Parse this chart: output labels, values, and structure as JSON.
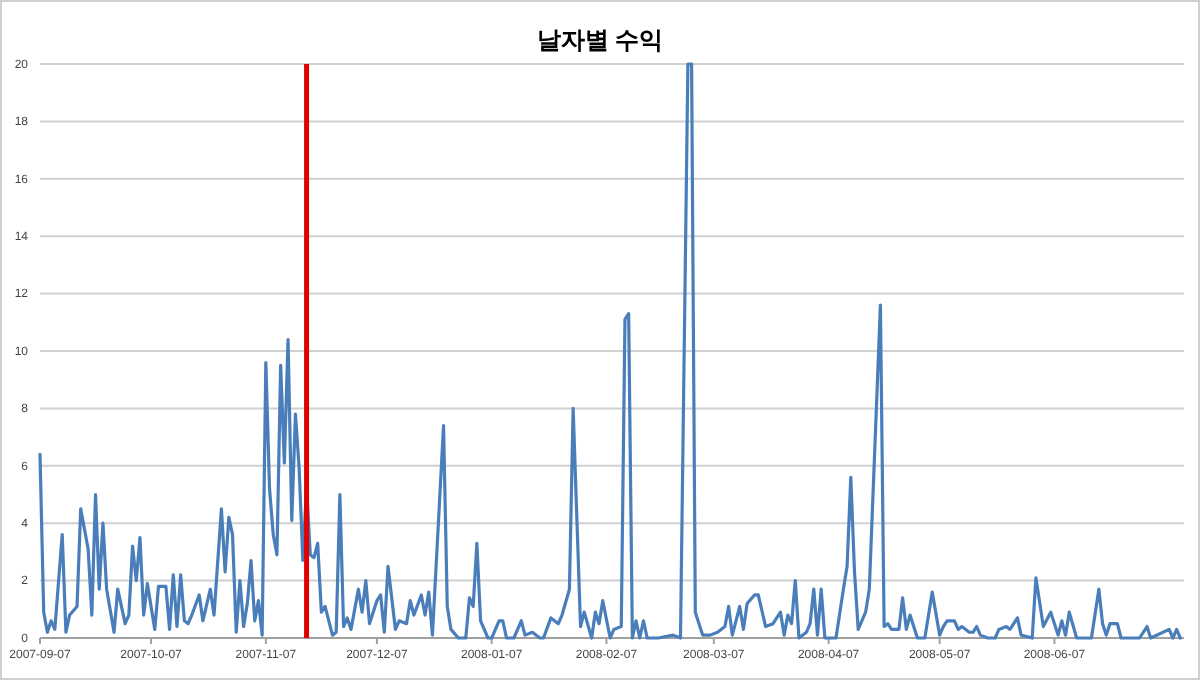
{
  "chart_data": {
    "type": "line",
    "title": "날자별 수익",
    "x": [
      "2007-09-07",
      "2007-09-08",
      "2007-09-09",
      "2007-09-10",
      "2007-09-11",
      "2007-09-13",
      "2007-09-14",
      "2007-09-15",
      "2007-09-17",
      "2007-09-18",
      "2007-09-20",
      "2007-09-21",
      "2007-09-22",
      "2007-09-23",
      "2007-09-24",
      "2007-09-25",
      "2007-09-27",
      "2007-09-28",
      "2007-09-30",
      "2007-10-01",
      "2007-10-02",
      "2007-10-03",
      "2007-10-04",
      "2007-10-05",
      "2007-10-06",
      "2007-10-08",
      "2007-10-09",
      "2007-10-11",
      "2007-10-12",
      "2007-10-13",
      "2007-10-14",
      "2007-10-15",
      "2007-10-16",
      "2007-10-17",
      "2007-10-18",
      "2007-10-20",
      "2007-10-21",
      "2007-10-23",
      "2007-10-24",
      "2007-10-26",
      "2007-10-27",
      "2007-10-28",
      "2007-10-29",
      "2007-10-30",
      "2007-10-31",
      "2007-11-01",
      "2007-11-02",
      "2007-11-03",
      "2007-11-04",
      "2007-11-05",
      "2007-11-06",
      "2007-11-07",
      "2007-11-08",
      "2007-11-09",
      "2007-11-10",
      "2007-11-11",
      "2007-11-12",
      "2007-11-13",
      "2007-11-14",
      "2007-11-15",
      "2007-11-16",
      "2007-11-17",
      "2007-11-18",
      "2007-11-19",
      "2007-11-20",
      "2007-11-21",
      "2007-11-22",
      "2007-11-23",
      "2007-11-25",
      "2007-11-26",
      "2007-11-27",
      "2007-11-28",
      "2007-11-29",
      "2007-11-30",
      "2007-12-02",
      "2007-12-03",
      "2007-12-04",
      "2007-12-05",
      "2007-12-07",
      "2007-12-08",
      "2007-12-09",
      "2007-12-10",
      "2007-12-12",
      "2007-12-13",
      "2007-12-15",
      "2007-12-16",
      "2007-12-17",
      "2007-12-19",
      "2007-12-20",
      "2007-12-21",
      "2007-12-22",
      "2007-12-25",
      "2007-12-26",
      "2007-12-27",
      "2007-12-29",
      "2007-12-31",
      "2008-01-01",
      "2008-01-02",
      "2008-01-03",
      "2008-01-04",
      "2008-01-06",
      "2008-01-07",
      "2008-01-09",
      "2008-01-10",
      "2008-01-11",
      "2008-01-13",
      "2008-01-15",
      "2008-01-16",
      "2008-01-18",
      "2008-01-20",
      "2008-01-21",
      "2008-01-23",
      "2008-01-25",
      "2008-01-26",
      "2008-01-28",
      "2008-01-29",
      "2008-01-31",
      "2008-02-01",
      "2008-02-03",
      "2008-02-04",
      "2008-02-05",
      "2008-02-06",
      "2008-02-08",
      "2008-02-09",
      "2008-02-11",
      "2008-02-12",
      "2008-02-13",
      "2008-02-14",
      "2008-02-15",
      "2008-02-16",
      "2008-02-17",
      "2008-02-18",
      "2008-02-21",
      "2008-02-25",
      "2008-02-27",
      "2008-02-29",
      "2008-03-01",
      "2008-03-02",
      "2008-03-04",
      "2008-03-06",
      "2008-03-08",
      "2008-03-10",
      "2008-03-11",
      "2008-03-12",
      "2008-03-14",
      "2008-03-15",
      "2008-03-16",
      "2008-03-18",
      "2008-03-19",
      "2008-03-21",
      "2008-03-23",
      "2008-03-25",
      "2008-03-26",
      "2008-03-27",
      "2008-03-28",
      "2008-03-29",
      "2008-03-30",
      "2008-04-01",
      "2008-04-02",
      "2008-04-03",
      "2008-04-04",
      "2008-04-05",
      "2008-04-06",
      "2008-04-09",
      "2008-04-11",
      "2008-04-12",
      "2008-04-13",
      "2008-04-14",
      "2008-04-15",
      "2008-04-17",
      "2008-04-18",
      "2008-04-21",
      "2008-04-22",
      "2008-04-23",
      "2008-04-24",
      "2008-04-26",
      "2008-04-27",
      "2008-04-28",
      "2008-04-29",
      "2008-05-01",
      "2008-05-03",
      "2008-05-05",
      "2008-05-07",
      "2008-05-08",
      "2008-05-09",
      "2008-05-11",
      "2008-05-12",
      "2008-05-13",
      "2008-05-15",
      "2008-05-16",
      "2008-05-17",
      "2008-05-18",
      "2008-05-20",
      "2008-05-22",
      "2008-05-23",
      "2008-05-25",
      "2008-05-26",
      "2008-05-27",
      "2008-05-28",
      "2008-05-29",
      "2008-06-01",
      "2008-06-02",
      "2008-06-04",
      "2008-06-06",
      "2008-06-08",
      "2008-06-09",
      "2008-06-10",
      "2008-06-11",
      "2008-06-13",
      "2008-06-17",
      "2008-06-19",
      "2008-06-20",
      "2008-06-21",
      "2008-06-22",
      "2008-06-24",
      "2008-06-25",
      "2008-06-30",
      "2008-07-02",
      "2008-07-03",
      "2008-07-08",
      "2008-07-09",
      "2008-07-10",
      "2008-07-11"
    ],
    "series": [
      {
        "color": "#4a7ebb",
        "values": [
          6.4,
          0.9,
          0.2,
          0.6,
          0.3,
          3.6,
          0.2,
          0.8,
          1.1,
          4.5,
          3.1,
          0.8,
          5,
          1.7,
          4,
          1.7,
          0.2,
          1.7,
          0.5,
          0.8,
          3.2,
          2,
          3.5,
          0.8,
          1.9,
          0.3,
          1.8,
          1.8,
          0.3,
          2.2,
          0.4,
          2.2,
          0.6,
          0.5,
          0.8,
          1.5,
          0.6,
          1.7,
          0.8,
          4.5,
          2.3,
          4.2,
          3.6,
          0.2,
          2,
          0.4,
          1.2,
          2.7,
          0.6,
          1.3,
          0.1,
          9.6,
          5.2,
          3.6,
          2.9,
          9.5,
          6.1,
          10.4,
          4.1,
          7.8,
          5.9,
          2.7,
          5.3,
          2.9,
          2.8,
          3.3,
          0.9,
          1.1,
          0.1,
          0.2,
          5,
          0.4,
          0.7,
          0.3,
          1.7,
          0.9,
          2,
          0.5,
          1.3,
          1.5,
          0.2,
          2.5,
          0.3,
          0.6,
          0.5,
          1.3,
          0.8,
          1.5,
          0.8,
          1.6,
          0.1,
          7.4,
          1.1,
          0.3,
          0,
          0,
          1.4,
          1.1,
          3.3,
          0.6,
          0,
          0,
          0.6,
          0.6,
          0,
          0,
          0.6,
          0.1,
          0.2,
          0,
          0,
          0.7,
          0.5,
          0.8,
          1.7,
          8,
          0.4,
          0.9,
          0,
          0.9,
          0.5,
          1.3,
          0,
          0.3,
          0.4,
          11.1,
          11.3,
          0,
          0.6,
          0,
          0.6,
          0,
          0,
          0.1,
          0,
          20,
          20,
          0.9,
          0.1,
          0.1,
          0.2,
          0.4,
          1.1,
          0.1,
          1.1,
          0.3,
          1.2,
          1.5,
          1.5,
          0.4,
          0.5,
          0.9,
          0.1,
          0.8,
          0.5,
          2,
          0,
          0.2,
          0.5,
          1.7,
          0.1,
          1.7,
          0,
          0,
          1.7,
          2.5,
          5.6,
          2.3,
          0.3,
          0.9,
          1.7,
          11.6,
          0.4,
          0.5,
          0.3,
          0.3,
          1.4,
          0.3,
          0.8,
          0,
          0,
          1.6,
          0.1,
          0.4,
          0.6,
          0.6,
          0.3,
          0.4,
          0.2,
          0.2,
          0.4,
          0.1,
          0,
          0,
          0.3,
          0.4,
          0.3,
          0.5,
          0.7,
          0.1,
          0,
          2.1,
          0.4,
          0.9,
          0.1,
          0.6,
          0.1,
          0.9,
          0,
          0,
          1.7,
          0.5,
          0.1,
          0.5,
          0.5,
          0,
          0,
          0.4,
          0,
          0.3,
          0,
          0.3,
          0
        ]
      }
    ],
    "xlim": [
      "2007-09-07",
      "2008-07-12"
    ],
    "xticks": [
      "2007-09-07",
      "2007-10-07",
      "2007-11-07",
      "2007-12-07",
      "2008-01-07",
      "2008-02-07",
      "2008-03-07",
      "2008-04-07",
      "2008-05-07",
      "2008-06-07"
    ],
    "ylim": [
      0,
      20
    ],
    "yticks": [
      0,
      2,
      4,
      6,
      8,
      10,
      12,
      14,
      16,
      18,
      20
    ],
    "grid": "y",
    "ref_lines": [
      {
        "axis": "x",
        "value": "2007-11-18",
        "color": "#e00000"
      }
    ]
  }
}
